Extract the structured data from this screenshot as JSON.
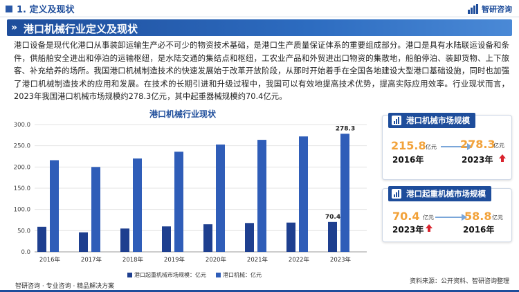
{
  "header": {
    "section_title": "1. 定义及现状",
    "logo_text": "智研咨询"
  },
  "banner": {
    "title": "港口机械行业定义及现状"
  },
  "body_text": "港口设备是现代化港口从事装卸运输生产必不可少的物资技术基础，是港口生产质量保证体系的重要组成部分。港口是具有水陆联运设备和条件，供船舶安全进出和停泊的运输枢纽，是水陆交通的集结点和枢纽，工农业产品和外贸进出口物资的集散地，船舶停泊、装卸货物、上下旅客、补充给养的场所。我国港口机械制造技术的快速发展始于改革开放阶段，从那时开始着手在全国各地建设大型港口基础设施，同时也加强了港口机械制造技术的应用和发展。在技术的长期引进和升级过程中，我国可以有效地提高技术优势，提高实际应用效率。行业现状而言，2023年我国港口机械市场规模约278.3亿元，其中起重器械规模约70.4亿元。",
  "chart_data": {
    "type": "bar",
    "title": "港口机械行业现状",
    "categories": [
      "2016年",
      "2017年",
      "2018年",
      "2019年",
      "2020年",
      "2021年",
      "2022年",
      "2023年"
    ],
    "series": [
      {
        "name": "港口起重机械市场规模：亿元",
        "color": "#1e3f8f",
        "values": [
          59,
          46,
          55,
          60,
          65,
          68,
          69,
          70.4
        ]
      },
      {
        "name": "港口机械：亿元",
        "color": "#2f5db8",
        "values": [
          216,
          200,
          220,
          236,
          253,
          264,
          272,
          278.3
        ]
      }
    ],
    "ylim": [
      0,
      300
    ],
    "yticks": [
      "0.0",
      "50.0",
      "100.0",
      "150.0",
      "200.0",
      "250.0",
      "300.0"
    ],
    "data_labels": {
      "light_2023": "278.3",
      "dark_2023": "70.4"
    },
    "grid": true,
    "legend": "bottom"
  },
  "card1": {
    "title": "港口机械市场规模",
    "left_value": "215.8",
    "left_unit": "亿元",
    "left_year": "2016年",
    "right_value": "278.3",
    "right_unit": "亿元",
    "right_year": "2023年"
  },
  "card2": {
    "title": "港口起重机械市场规模",
    "left_value": "70.4",
    "left_unit": "亿元",
    "left_year": "2023年",
    "right_value": "58.8",
    "right_unit": "亿元",
    "right_year": "2016年"
  },
  "source": "资料来源：公开资料、智研咨询整理",
  "footer": "智研咨询 · 专业咨询 · 精品解决方案"
}
